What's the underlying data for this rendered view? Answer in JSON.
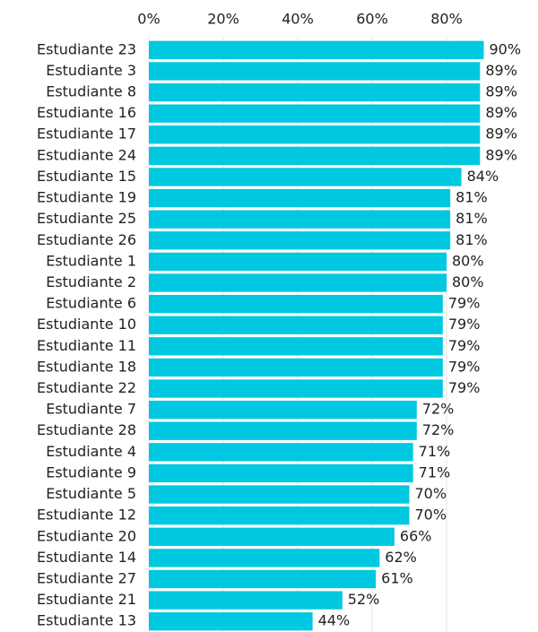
{
  "chart_data": {
    "type": "barh",
    "categories": [
      "Estudiante 23",
      "Estudiante 3",
      "Estudiante 8",
      "Estudiante 16",
      "Estudiante 17",
      "Estudiante 24",
      "Estudiante 15",
      "Estudiante 19",
      "Estudiante 25",
      "Estudiante 26",
      "Estudiante 1",
      "Estudiante 2",
      "Estudiante 6",
      "Estudiante 10",
      "Estudiante 11",
      "Estudiante 18",
      "Estudiante 22",
      "Estudiante 7",
      "Estudiante 28",
      "Estudiante 4",
      "Estudiante 9",
      "Estudiante 5",
      "Estudiante 12",
      "Estudiante 20",
      "Estudiante 14",
      "Estudiante 27",
      "Estudiante 21",
      "Estudiante 13"
    ],
    "values": [
      90,
      89,
      89,
      89,
      89,
      89,
      84,
      81,
      81,
      81,
      80,
      80,
      79,
      79,
      79,
      79,
      79,
      72,
      72,
      71,
      71,
      70,
      70,
      66,
      62,
      61,
      52,
      44
    ],
    "value_labels": [
      "90%",
      "89%",
      "89%",
      "89%",
      "89%",
      "89%",
      "84%",
      "81%",
      "81%",
      "81%",
      "80%",
      "80%",
      "79%",
      "79%",
      "79%",
      "79%",
      "79%",
      "72%",
      "72%",
      "71%",
      "71%",
      "70%",
      "70%",
      "66%",
      "62%",
      "61%",
      "52%",
      "44%"
    ],
    "color": "#00c8e0",
    "xlim": [
      0,
      90
    ],
    "xticks": [
      {
        "value": 0,
        "label": "0%"
      },
      {
        "value": 20,
        "label": "20%"
      },
      {
        "value": 40,
        "label": "40%"
      },
      {
        "value": 60,
        "label": "60%"
      },
      {
        "value": 80,
        "label": "80%"
      }
    ],
    "grid": true
  }
}
